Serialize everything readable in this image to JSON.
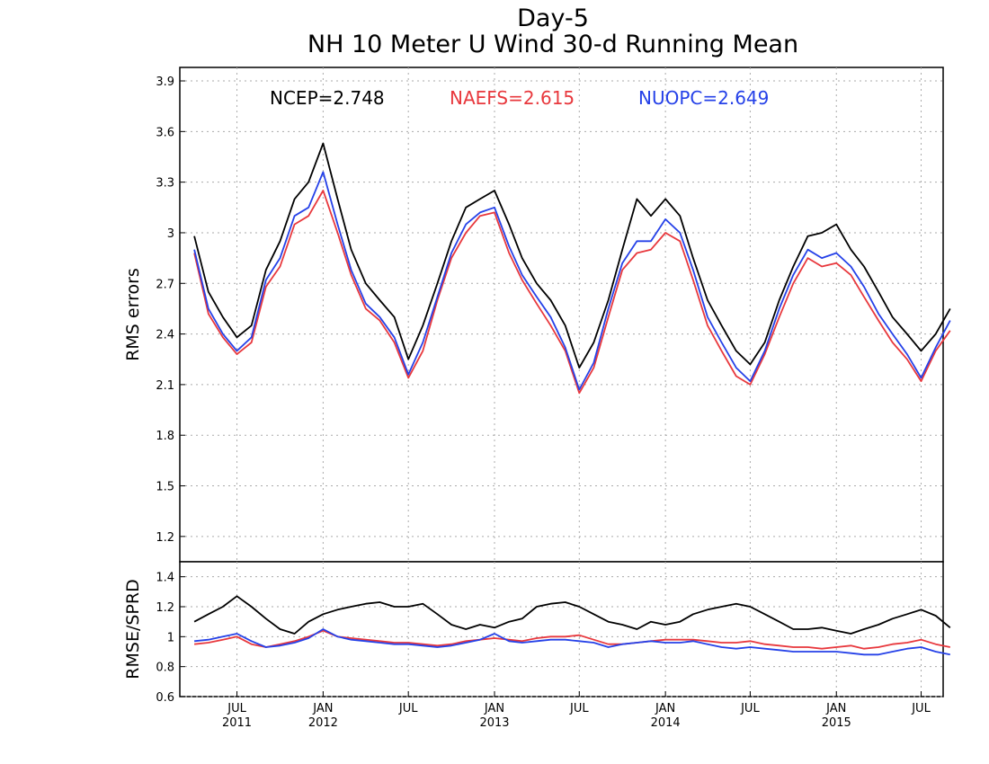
{
  "title_line1": "Day-5",
  "title_line2": "NH 10 Meter U Wind 30-d Running Mean",
  "colors": {
    "ncep": "#000000",
    "naefs": "#e8383d",
    "nuopc": "#2541e8"
  },
  "chart_data": [
    {
      "type": "line",
      "panel": "top",
      "ylabel": "RMS errors",
      "ylim": [
        1.05,
        3.98
      ],
      "yticks": [
        "1.2",
        "1.5",
        "1.8",
        "2.1",
        "2.4",
        "2.7",
        "3",
        "3.3",
        "3.6",
        "3.9"
      ],
      "grid": true,
      "legend": [
        {
          "name": "NCEP",
          "text": "NCEP=2.748"
        },
        {
          "name": "NAEFS",
          "text": "NAEFS=2.615"
        },
        {
          "name": "NUOPC",
          "text": "NUOPC=2.649"
        }
      ],
      "x": [
        "2011-04",
        "2011-05",
        "2011-06",
        "2011-07",
        "2011-08",
        "2011-09",
        "2011-10",
        "2011-11",
        "2011-12",
        "2012-01",
        "2012-02",
        "2012-03",
        "2012-04",
        "2012-05",
        "2012-06",
        "2012-07",
        "2012-08",
        "2012-09",
        "2012-10",
        "2012-11",
        "2012-12",
        "2013-01",
        "2013-02",
        "2013-03",
        "2013-04",
        "2013-05",
        "2013-06",
        "2013-07",
        "2013-08",
        "2013-09",
        "2013-10",
        "2013-11",
        "2013-12",
        "2014-01",
        "2014-02",
        "2014-03",
        "2014-04",
        "2014-05",
        "2014-06",
        "2014-07",
        "2014-08",
        "2014-09",
        "2014-10",
        "2014-11",
        "2014-12",
        "2015-01",
        "2015-02",
        "2015-03",
        "2015-04",
        "2015-05",
        "2015-06",
        "2015-07",
        "2015-08",
        "2015-09"
      ],
      "series": [
        {
          "name": "NCEP",
          "values": [
            2.98,
            2.65,
            2.5,
            2.38,
            2.45,
            2.78,
            2.95,
            3.2,
            3.3,
            3.53,
            3.2,
            2.9,
            2.7,
            2.6,
            2.5,
            2.25,
            2.45,
            2.7,
            2.95,
            3.15,
            3.2,
            3.25,
            3.05,
            2.85,
            2.7,
            2.6,
            2.45,
            2.2,
            2.35,
            2.6,
            2.9,
            3.2,
            3.1,
            3.2,
            3.1,
            2.85,
            2.6,
            2.45,
            2.3,
            2.22,
            2.35,
            2.6,
            2.8,
            2.98,
            3.0,
            3.05,
            2.9,
            2.8,
            2.65,
            2.5,
            2.4,
            2.3,
            2.4,
            2.55
          ]
        },
        {
          "name": "NAEFS",
          "values": [
            2.88,
            2.52,
            2.38,
            2.28,
            2.35,
            2.68,
            2.8,
            3.05,
            3.1,
            3.25,
            3.0,
            2.75,
            2.55,
            2.48,
            2.35,
            2.14,
            2.3,
            2.6,
            2.85,
            3.0,
            3.1,
            3.12,
            2.88,
            2.72,
            2.58,
            2.45,
            2.3,
            2.05,
            2.2,
            2.5,
            2.78,
            2.88,
            2.9,
            3.0,
            2.95,
            2.72,
            2.45,
            2.3,
            2.15,
            2.1,
            2.28,
            2.5,
            2.7,
            2.85,
            2.8,
            2.82,
            2.75,
            2.62,
            2.48,
            2.35,
            2.25,
            2.12,
            2.3,
            2.42
          ]
        },
        {
          "name": "NUOPC",
          "values": [
            2.9,
            2.55,
            2.4,
            2.3,
            2.38,
            2.72,
            2.85,
            3.1,
            3.15,
            3.36,
            3.05,
            2.78,
            2.58,
            2.5,
            2.38,
            2.16,
            2.35,
            2.62,
            2.88,
            3.05,
            3.12,
            3.15,
            2.92,
            2.75,
            2.62,
            2.5,
            2.32,
            2.07,
            2.23,
            2.55,
            2.82,
            2.95,
            2.95,
            3.08,
            3.0,
            2.78,
            2.5,
            2.35,
            2.2,
            2.12,
            2.3,
            2.55,
            2.75,
            2.9,
            2.85,
            2.88,
            2.8,
            2.68,
            2.52,
            2.4,
            2.28,
            2.14,
            2.32,
            2.48
          ]
        }
      ]
    },
    {
      "type": "line",
      "panel": "bottom",
      "ylabel": "RMSE/SPRD",
      "ylim": [
        0.6,
        1.5
      ],
      "yticks": [
        "0.6",
        "0.8",
        "1",
        "1.2",
        "1.4"
      ],
      "grid": true,
      "x": [
        "2011-04",
        "2011-05",
        "2011-06",
        "2011-07",
        "2011-08",
        "2011-09",
        "2011-10",
        "2011-11",
        "2011-12",
        "2012-01",
        "2012-02",
        "2012-03",
        "2012-04",
        "2012-05",
        "2012-06",
        "2012-07",
        "2012-08",
        "2012-09",
        "2012-10",
        "2012-11",
        "2012-12",
        "2013-01",
        "2013-02",
        "2013-03",
        "2013-04",
        "2013-05",
        "2013-06",
        "2013-07",
        "2013-08",
        "2013-09",
        "2013-10",
        "2013-11",
        "2013-12",
        "2014-01",
        "2014-02",
        "2014-03",
        "2014-04",
        "2014-05",
        "2014-06",
        "2014-07",
        "2014-08",
        "2014-09",
        "2014-10",
        "2014-11",
        "2014-12",
        "2015-01",
        "2015-02",
        "2015-03",
        "2015-04",
        "2015-05",
        "2015-06",
        "2015-07",
        "2015-08",
        "2015-09"
      ],
      "series": [
        {
          "name": "NCEP",
          "values": [
            1.1,
            1.15,
            1.2,
            1.27,
            1.2,
            1.12,
            1.05,
            1.02,
            1.1,
            1.15,
            1.18,
            1.2,
            1.22,
            1.23,
            1.2,
            1.2,
            1.22,
            1.15,
            1.08,
            1.05,
            1.08,
            1.06,
            1.1,
            1.12,
            1.2,
            1.22,
            1.23,
            1.2,
            1.15,
            1.1,
            1.08,
            1.05,
            1.1,
            1.08,
            1.1,
            1.15,
            1.18,
            1.2,
            1.22,
            1.2,
            1.15,
            1.1,
            1.05,
            1.05,
            1.06,
            1.04,
            1.02,
            1.05,
            1.08,
            1.12,
            1.15,
            1.18,
            1.14,
            1.06
          ]
        },
        {
          "name": "NAEFS",
          "values": [
            0.95,
            0.96,
            0.98,
            1.0,
            0.95,
            0.93,
            0.95,
            0.97,
            1.0,
            1.04,
            1.0,
            0.99,
            0.98,
            0.97,
            0.96,
            0.96,
            0.95,
            0.94,
            0.95,
            0.97,
            0.98,
            0.99,
            0.98,
            0.97,
            0.99,
            1.0,
            1.0,
            1.01,
            0.98,
            0.95,
            0.95,
            0.96,
            0.97,
            0.98,
            0.98,
            0.98,
            0.97,
            0.96,
            0.96,
            0.97,
            0.95,
            0.94,
            0.93,
            0.93,
            0.92,
            0.93,
            0.94,
            0.92,
            0.93,
            0.95,
            0.96,
            0.98,
            0.95,
            0.93
          ]
        },
        {
          "name": "NUOPC",
          "values": [
            0.97,
            0.98,
            1.0,
            1.02,
            0.97,
            0.93,
            0.94,
            0.96,
            0.99,
            1.05,
            1.0,
            0.98,
            0.97,
            0.96,
            0.95,
            0.95,
            0.94,
            0.93,
            0.94,
            0.96,
            0.98,
            1.02,
            0.97,
            0.96,
            0.97,
            0.98,
            0.98,
            0.97,
            0.96,
            0.93,
            0.95,
            0.96,
            0.97,
            0.96,
            0.96,
            0.97,
            0.95,
            0.93,
            0.92,
            0.93,
            0.92,
            0.91,
            0.9,
            0.9,
            0.9,
            0.9,
            0.89,
            0.88,
            0.88,
            0.9,
            0.92,
            0.93,
            0.9,
            0.88
          ]
        }
      ]
    }
  ],
  "xaxis": {
    "ticks": [
      {
        "month": "JUL",
        "year": "2011",
        "date": "2011-07"
      },
      {
        "month": "JAN",
        "year": "2012",
        "date": "2012-01"
      },
      {
        "month": "JUL",
        "year": "",
        "date": "2012-07"
      },
      {
        "month": "JAN",
        "year": "2013",
        "date": "2013-01"
      },
      {
        "month": "JUL",
        "year": "",
        "date": "2013-07"
      },
      {
        "month": "JAN",
        "year": "2014",
        "date": "2014-01"
      },
      {
        "month": "JUL",
        "year": "",
        "date": "2014-07"
      },
      {
        "month": "JAN",
        "year": "2015",
        "date": "2015-01"
      },
      {
        "month": "JUL",
        "year": "",
        "date": "2015-07"
      }
    ]
  }
}
